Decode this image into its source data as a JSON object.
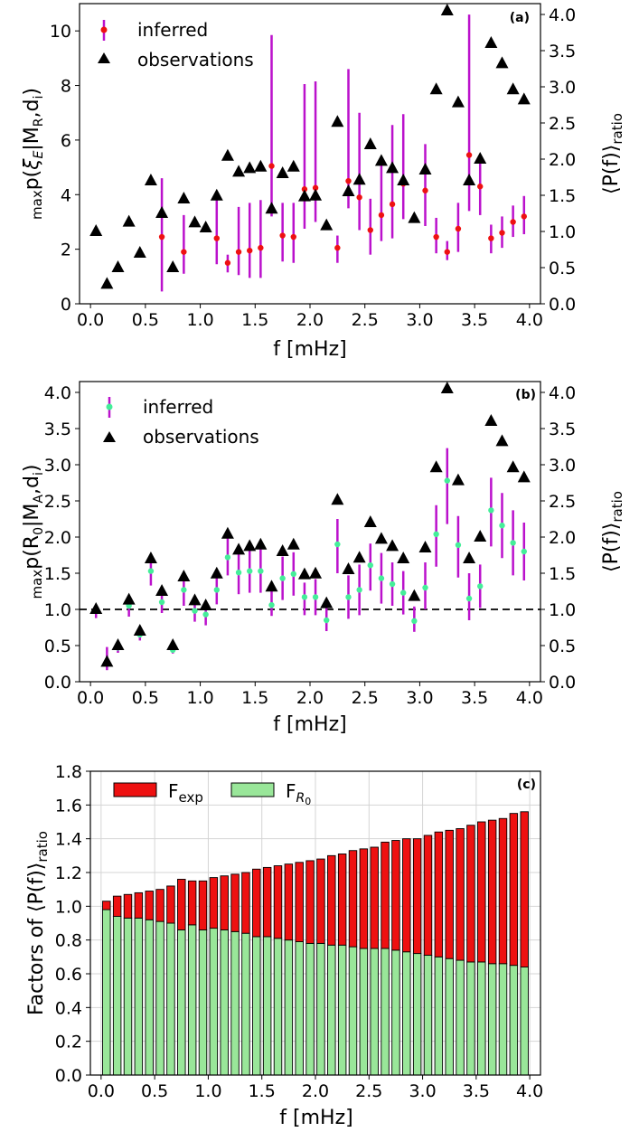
{
  "chart_data": [
    {
      "panel": "(a)",
      "type": "scatter",
      "xlabel": "f [mHz]",
      "ylabel_left": "maxp(ξE|MR,di)",
      "ylabel_right": "⟨P(f)⟩ratio",
      "xlim": [
        -0.1,
        4.1
      ],
      "ylim_left": [
        0,
        11
      ],
      "ylim_right": [
        0,
        4.15
      ],
      "xticks": [
        "0.0",
        "0.5",
        "1.0",
        "1.5",
        "2.0",
        "2.5",
        "3.0",
        "3.5",
        "4.0"
      ],
      "yticks_left": [
        "0",
        "2",
        "4",
        "6",
        "8",
        "10"
      ],
      "yticks_right": [
        "0.0",
        "0.5",
        "1.0",
        "1.5",
        "2.0",
        "2.5",
        "3.0",
        "3.5",
        "4.0"
      ],
      "legend": [
        "inferred",
        "observations"
      ],
      "colors": {
        "inferred": "#ee1111",
        "errorbar": "#bb11cc",
        "observations": "#000000"
      },
      "series": [
        {
          "name": "inferred",
          "axis": "left",
          "x": [
            0.65,
            0.85,
            1.15,
            1.25,
            1.35,
            1.45,
            1.55,
            1.65,
            1.75,
            1.85,
            1.95,
            2.05,
            2.25,
            2.35,
            2.45,
            2.55,
            2.65,
            2.75,
            2.85,
            3.05,
            3.15,
            3.25,
            3.35,
            3.45,
            3.55,
            3.65,
            3.75,
            3.85,
            3.95
          ],
          "y": [
            2.45,
            1.9,
            2.4,
            1.5,
            1.9,
            1.95,
            2.05,
            5.05,
            2.5,
            2.45,
            4.2,
            4.25,
            2.05,
            4.5,
            3.9,
            2.7,
            3.25,
            3.65,
            4.4,
            4.15,
            2.45,
            1.9,
            2.75,
            5.45,
            4.3,
            2.4,
            2.6,
            3.0,
            3.2
          ],
          "err_low": [
            2.0,
            0.8,
            0.95,
            0.35,
            0.85,
            1.0,
            1.1,
            1.85,
            0.95,
            0.95,
            1.45,
            1.25,
            0.55,
            1.0,
            1.2,
            0.9,
            0.95,
            1.25,
            1.3,
            1.3,
            0.6,
            0.3,
            0.85,
            2.05,
            1.05,
            0.55,
            0.55,
            0.55,
            0.65
          ],
          "err_high": [
            2.15,
            1.35,
            1.55,
            0.3,
            1.65,
            1.75,
            1.75,
            4.8,
            1.2,
            1.25,
            3.85,
            3.9,
            0.45,
            4.1,
            3.1,
            1.15,
            1.85,
            2.9,
            2.55,
            1.7,
            0.7,
            0.4,
            0.95,
            5.15,
            1.0,
            0.5,
            0.6,
            0.6,
            0.75
          ]
        },
        {
          "name": "observations",
          "axis": "right",
          "x": [
            0.05,
            0.15,
            0.25,
            0.35,
            0.45,
            0.55,
            0.65,
            0.75,
            0.85,
            0.95,
            1.05,
            1.15,
            1.25,
            1.35,
            1.45,
            1.55,
            1.65,
            1.75,
            1.85,
            1.95,
            2.05,
            2.15,
            2.25,
            2.35,
            2.45,
            2.55,
            2.65,
            2.75,
            2.85,
            2.95,
            3.05,
            3.15,
            3.25,
            3.35,
            3.45,
            3.55,
            3.65,
            3.75,
            3.85,
            3.95
          ],
          "y": [
            1.0,
            0.27,
            0.5,
            1.13,
            0.7,
            1.7,
            1.25,
            0.5,
            1.45,
            1.12,
            1.05,
            1.49,
            2.04,
            1.82,
            1.87,
            1.89,
            1.31,
            1.8,
            1.89,
            1.48,
            1.49,
            1.08,
            2.51,
            1.55,
            1.71,
            2.2,
            1.97,
            1.87,
            1.7,
            1.18,
            1.85,
            2.96,
            4.05,
            2.78,
            1.7,
            2.0,
            3.6,
            3.32,
            2.96,
            2.82
          ]
        }
      ]
    },
    {
      "panel": "(b)",
      "type": "scatter",
      "xlabel": "f [mHz]",
      "ylabel_left": "maxp(R0|MA,di)",
      "ylabel_right": "⟨P(f)⟩ratio",
      "xlim": [
        -0.1,
        4.1
      ],
      "ylim": [
        0,
        4.15
      ],
      "xticks": [
        "0.0",
        "0.5",
        "1.0",
        "1.5",
        "2.0",
        "2.5",
        "3.0",
        "3.5",
        "4.0"
      ],
      "yticks_left": [
        "0.0",
        "0.5",
        "1.0",
        "1.5",
        "2.0",
        "2.5",
        "3.0",
        "3.5",
        "4.0"
      ],
      "yticks_right": [
        "0.0",
        "0.5",
        "1.0",
        "1.5",
        "2.0",
        "2.5",
        "3.0",
        "3.5",
        "4.0"
      ],
      "reference_line": 1.0,
      "legend": [
        "inferred",
        "observations"
      ],
      "colors": {
        "inferred": "#44ee99",
        "errorbar": "#bb11cc",
        "observations": "#000000",
        "reference": "#000000"
      },
      "series": [
        {
          "name": "inferred",
          "x": [
            0.05,
            0.15,
            0.25,
            0.35,
            0.45,
            0.55,
            0.65,
            0.75,
            0.85,
            0.95,
            1.05,
            1.15,
            1.25,
            1.35,
            1.45,
            1.55,
            1.65,
            1.75,
            1.85,
            1.95,
            2.05,
            2.15,
            2.25,
            2.35,
            2.45,
            2.55,
            2.65,
            2.75,
            2.85,
            2.95,
            3.05,
            3.15,
            3.25,
            3.35,
            3.45,
            3.55,
            3.65,
            3.75,
            3.85,
            3.95
          ],
          "y": [
            0.98,
            0.28,
            0.47,
            1.05,
            0.65,
            1.53,
            1.1,
            0.44,
            1.27,
            0.98,
            0.93,
            1.27,
            1.72,
            1.51,
            1.53,
            1.53,
            1.06,
            1.43,
            1.49,
            1.17,
            1.17,
            0.85,
            1.9,
            1.17,
            1.27,
            1.61,
            1.43,
            1.35,
            1.23,
            0.84,
            1.3,
            2.04,
            2.78,
            1.89,
            1.15,
            1.32,
            2.37,
            2.16,
            1.92,
            1.8
          ],
          "err_low": [
            0.1,
            0.12,
            0.07,
            0.15,
            0.08,
            0.2,
            0.15,
            0.05,
            0.22,
            0.15,
            0.15,
            0.2,
            0.25,
            0.3,
            0.3,
            0.3,
            0.15,
            0.3,
            0.3,
            0.25,
            0.25,
            0.15,
            0.4,
            0.3,
            0.35,
            0.35,
            0.35,
            0.3,
            0.3,
            0.15,
            0.3,
            0.45,
            0.6,
            0.45,
            0.3,
            0.3,
            0.5,
            0.45,
            0.45,
            0.4
          ],
          "err_high": [
            0.05,
            0.2,
            0.05,
            0.05,
            0.05,
            0.15,
            0.15,
            0.05,
            0.2,
            0.1,
            0.15,
            0.2,
            0.3,
            0.3,
            0.3,
            0.3,
            0.2,
            0.3,
            0.3,
            0.2,
            0.25,
            0.2,
            0.35,
            0.3,
            0.35,
            0.3,
            0.35,
            0.3,
            0.3,
            0.2,
            0.35,
            0.4,
            0.45,
            0.4,
            0.35,
            0.3,
            0.45,
            0.45,
            0.45,
            0.4
          ]
        },
        {
          "name": "observations",
          "x": [
            0.05,
            0.15,
            0.25,
            0.35,
            0.45,
            0.55,
            0.65,
            0.75,
            0.85,
            0.95,
            1.05,
            1.15,
            1.25,
            1.35,
            1.45,
            1.55,
            1.65,
            1.75,
            1.85,
            1.95,
            2.05,
            2.15,
            2.25,
            2.35,
            2.45,
            2.55,
            2.65,
            2.75,
            2.85,
            2.95,
            3.05,
            3.15,
            3.25,
            3.35,
            3.45,
            3.55,
            3.65,
            3.75,
            3.85,
            3.95
          ],
          "y": [
            1.0,
            0.27,
            0.5,
            1.13,
            0.7,
            1.7,
            1.25,
            0.5,
            1.45,
            1.12,
            1.05,
            1.49,
            2.04,
            1.82,
            1.87,
            1.89,
            1.31,
            1.8,
            1.89,
            1.48,
            1.49,
            1.08,
            2.51,
            1.55,
            1.71,
            2.2,
            1.97,
            1.87,
            1.7,
            1.18,
            1.85,
            2.96,
            4.05,
            2.78,
            1.7,
            2.0,
            3.6,
            3.32,
            2.96,
            2.82
          ]
        }
      ]
    },
    {
      "panel": "(c)",
      "type": "bar",
      "stacked": true,
      "xlabel": "f [mHz]",
      "ylabel": "Factors of ⟨P(f)⟩ratio",
      "xlim": [
        -0.1,
        4.1
      ],
      "ylim": [
        0,
        1.8
      ],
      "grid": true,
      "xticks": [
        "0.0",
        "0.5",
        "1.0",
        "1.5",
        "2.0",
        "2.5",
        "3.0",
        "3.5",
        "4.0"
      ],
      "yticks": [
        "0.0",
        "0.2",
        "0.4",
        "0.6",
        "0.8",
        "1.0",
        "1.2",
        "1.4",
        "1.6",
        "1.8"
      ],
      "legend": [
        "Fexp",
        "FR0"
      ],
      "colors": {
        "Fexp": "#ee1111",
        "FR0": "#99e699",
        "edge": "#000000"
      },
      "x": [
        0.05,
        0.15,
        0.25,
        0.35,
        0.45,
        0.55,
        0.65,
        0.75,
        0.85,
        0.95,
        1.05,
        1.15,
        1.25,
        1.35,
        1.45,
        1.55,
        1.65,
        1.75,
        1.85,
        1.95,
        2.05,
        2.15,
        2.25,
        2.35,
        2.45,
        2.55,
        2.65,
        2.75,
        2.85,
        2.95,
        3.05,
        3.15,
        3.25,
        3.35,
        3.45,
        3.55,
        3.65,
        3.75,
        3.85,
        3.95
      ],
      "series": [
        {
          "name": "FR0",
          "values": [
            0.98,
            0.94,
            0.93,
            0.93,
            0.92,
            0.91,
            0.9,
            0.86,
            0.89,
            0.86,
            0.87,
            0.86,
            0.85,
            0.84,
            0.82,
            0.82,
            0.81,
            0.8,
            0.79,
            0.78,
            0.78,
            0.77,
            0.77,
            0.76,
            0.75,
            0.75,
            0.75,
            0.74,
            0.73,
            0.72,
            0.71,
            0.7,
            0.69,
            0.68,
            0.67,
            0.67,
            0.66,
            0.66,
            0.65,
            0.64
          ]
        },
        {
          "name": "Fexp",
          "total": [
            1.03,
            1.06,
            1.07,
            1.08,
            1.09,
            1.1,
            1.12,
            1.16,
            1.15,
            1.15,
            1.17,
            1.18,
            1.19,
            1.2,
            1.22,
            1.23,
            1.24,
            1.25,
            1.26,
            1.27,
            1.28,
            1.3,
            1.31,
            1.33,
            1.34,
            1.35,
            1.38,
            1.39,
            1.4,
            1.4,
            1.42,
            1.44,
            1.45,
            1.46,
            1.48,
            1.5,
            1.51,
            1.52,
            1.55,
            1.56
          ],
          "values": [
            0.05,
            0.12,
            0.14,
            0.15,
            0.17,
            0.19,
            0.22,
            0.3,
            0.26,
            0.29,
            0.3,
            0.32,
            0.34,
            0.36,
            0.4,
            0.41,
            0.43,
            0.45,
            0.47,
            0.49,
            0.5,
            0.53,
            0.54,
            0.57,
            0.59,
            0.6,
            0.63,
            0.65,
            0.67,
            0.68,
            0.71,
            0.74,
            0.76,
            0.78,
            0.81,
            0.83,
            0.85,
            0.86,
            0.9,
            0.92
          ]
        }
      ]
    }
  ]
}
